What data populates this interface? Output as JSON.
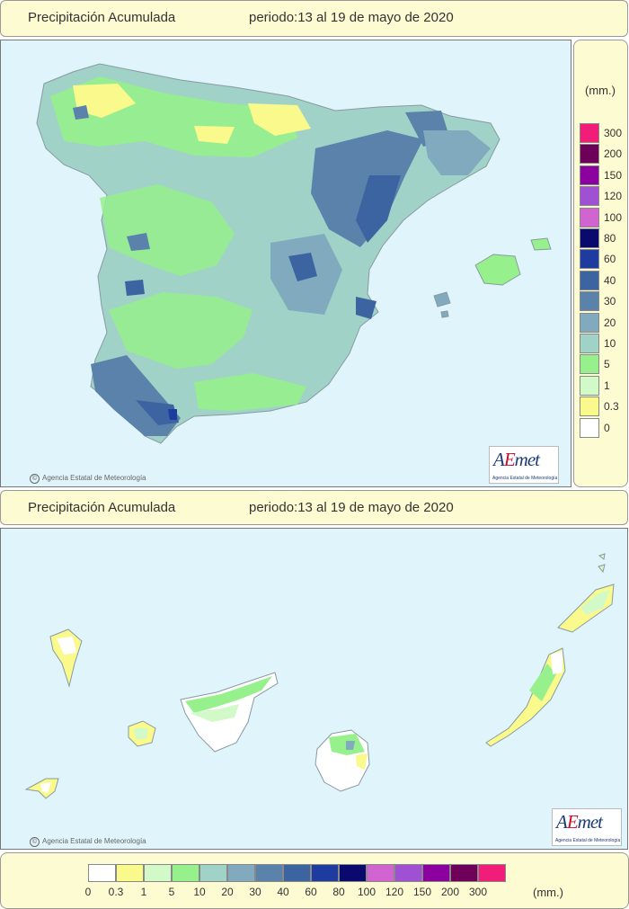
{
  "top": {
    "title": "Precipitación Acumulada",
    "period": "periodo:13 al 19 de mayo de 2020",
    "credit": "Agencia Estatal de Meteorología",
    "logo_text": "AEmet",
    "logo_sub": "Agencia Estatal de Meteorología"
  },
  "bottom": {
    "title": "Precipitación Acumulada",
    "period": "periodo:13 al 19 de mayo de 2020",
    "credit": "Agencia Estatal de Meteorología",
    "logo_text": "AEmet",
    "logo_sub": "Agencia Estatal de Meteorología"
  },
  "legend": {
    "unit": "(mm.)",
    "scale": [
      {
        "label": "0",
        "color": "#ffffff"
      },
      {
        "label": "0.3",
        "color": "#fafa8c"
      },
      {
        "label": "1",
        "color": "#d2fac8"
      },
      {
        "label": "5",
        "color": "#96f08c"
      },
      {
        "label": "10",
        "color": "#a0d2c8"
      },
      {
        "label": "20",
        "color": "#82aabe"
      },
      {
        "label": "30",
        "color": "#5a82aa"
      },
      {
        "label": "40",
        "color": "#3c64a0"
      },
      {
        "label": "60",
        "color": "#1e3ca0"
      },
      {
        "label": "80",
        "color": "#0a0a6e"
      },
      {
        "label": "100",
        "color": "#d264d2"
      },
      {
        "label": "120",
        "color": "#a050d2"
      },
      {
        "label": "150",
        "color": "#8c00a0"
      },
      {
        "label": "200",
        "color": "#6e005a"
      },
      {
        "label": "300",
        "color": "#f01e78"
      }
    ]
  },
  "colors": {
    "sea": "#dff4fb",
    "panel": "#fdfbd2",
    "accent_red": "#c8102e",
    "brand_blue": "#1b3c7a"
  }
}
